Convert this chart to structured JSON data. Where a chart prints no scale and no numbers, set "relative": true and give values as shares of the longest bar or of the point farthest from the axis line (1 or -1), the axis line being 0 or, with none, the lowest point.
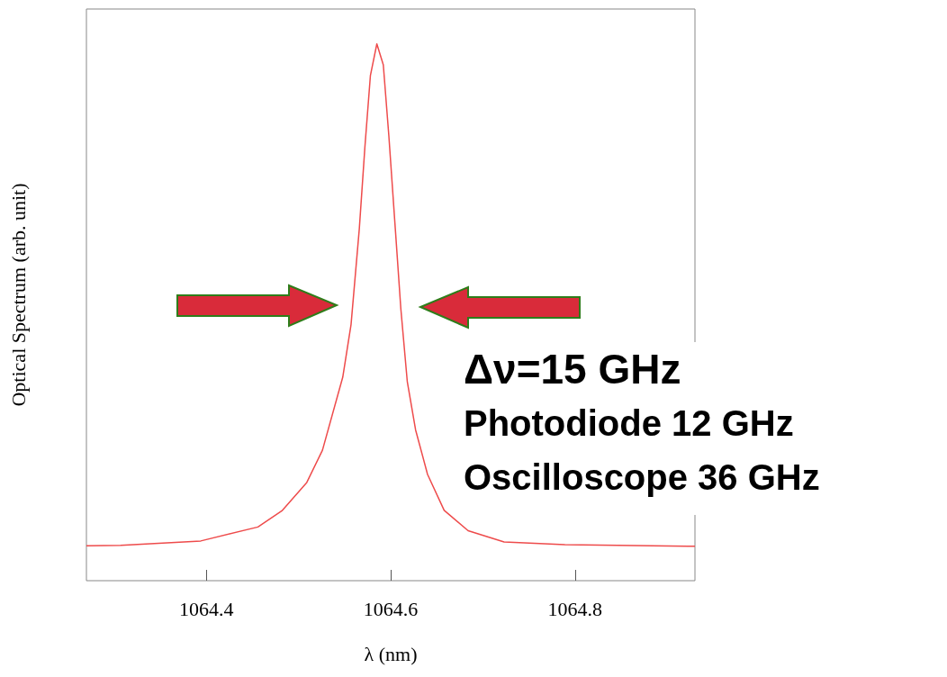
{
  "chart_data": {
    "type": "line",
    "xlabel": "λ (nm)",
    "ylabel": "Optical Spectrum (arb. unit)",
    "relative": true,
    "xlim": [
      1064.27,
      1064.93
    ],
    "xticks": [
      1064.4,
      1064.6,
      1064.8
    ],
    "grid": false,
    "marker": "none",
    "series": [
      {
        "color": "#ee4b4b",
        "x": [
          1064.27,
          1064.307,
          1064.394,
          1064.456,
          1064.482,
          1064.509,
          1064.526,
          1064.548,
          1064.557,
          1064.566,
          1064.572,
          1064.578,
          1064.585,
          1064.592,
          1064.598,
          1064.605,
          1064.611,
          1064.618,
          1064.627,
          1064.64,
          1064.658,
          1064.684,
          1064.723,
          1064.789,
          1064.93
        ],
        "values": [
          0.065,
          0.066,
          0.074,
          0.1,
          0.13,
          0.183,
          0.243,
          0.379,
          0.477,
          0.656,
          0.807,
          0.941,
          1.0,
          0.961,
          0.829,
          0.656,
          0.507,
          0.371,
          0.281,
          0.198,
          0.131,
          0.093,
          0.072,
          0.067,
          0.064
        ]
      }
    ],
    "annotations": [
      "Δν=15 GHz",
      "Photodiode 12 GHz",
      "Oscilloscope 36 GHz"
    ]
  }
}
